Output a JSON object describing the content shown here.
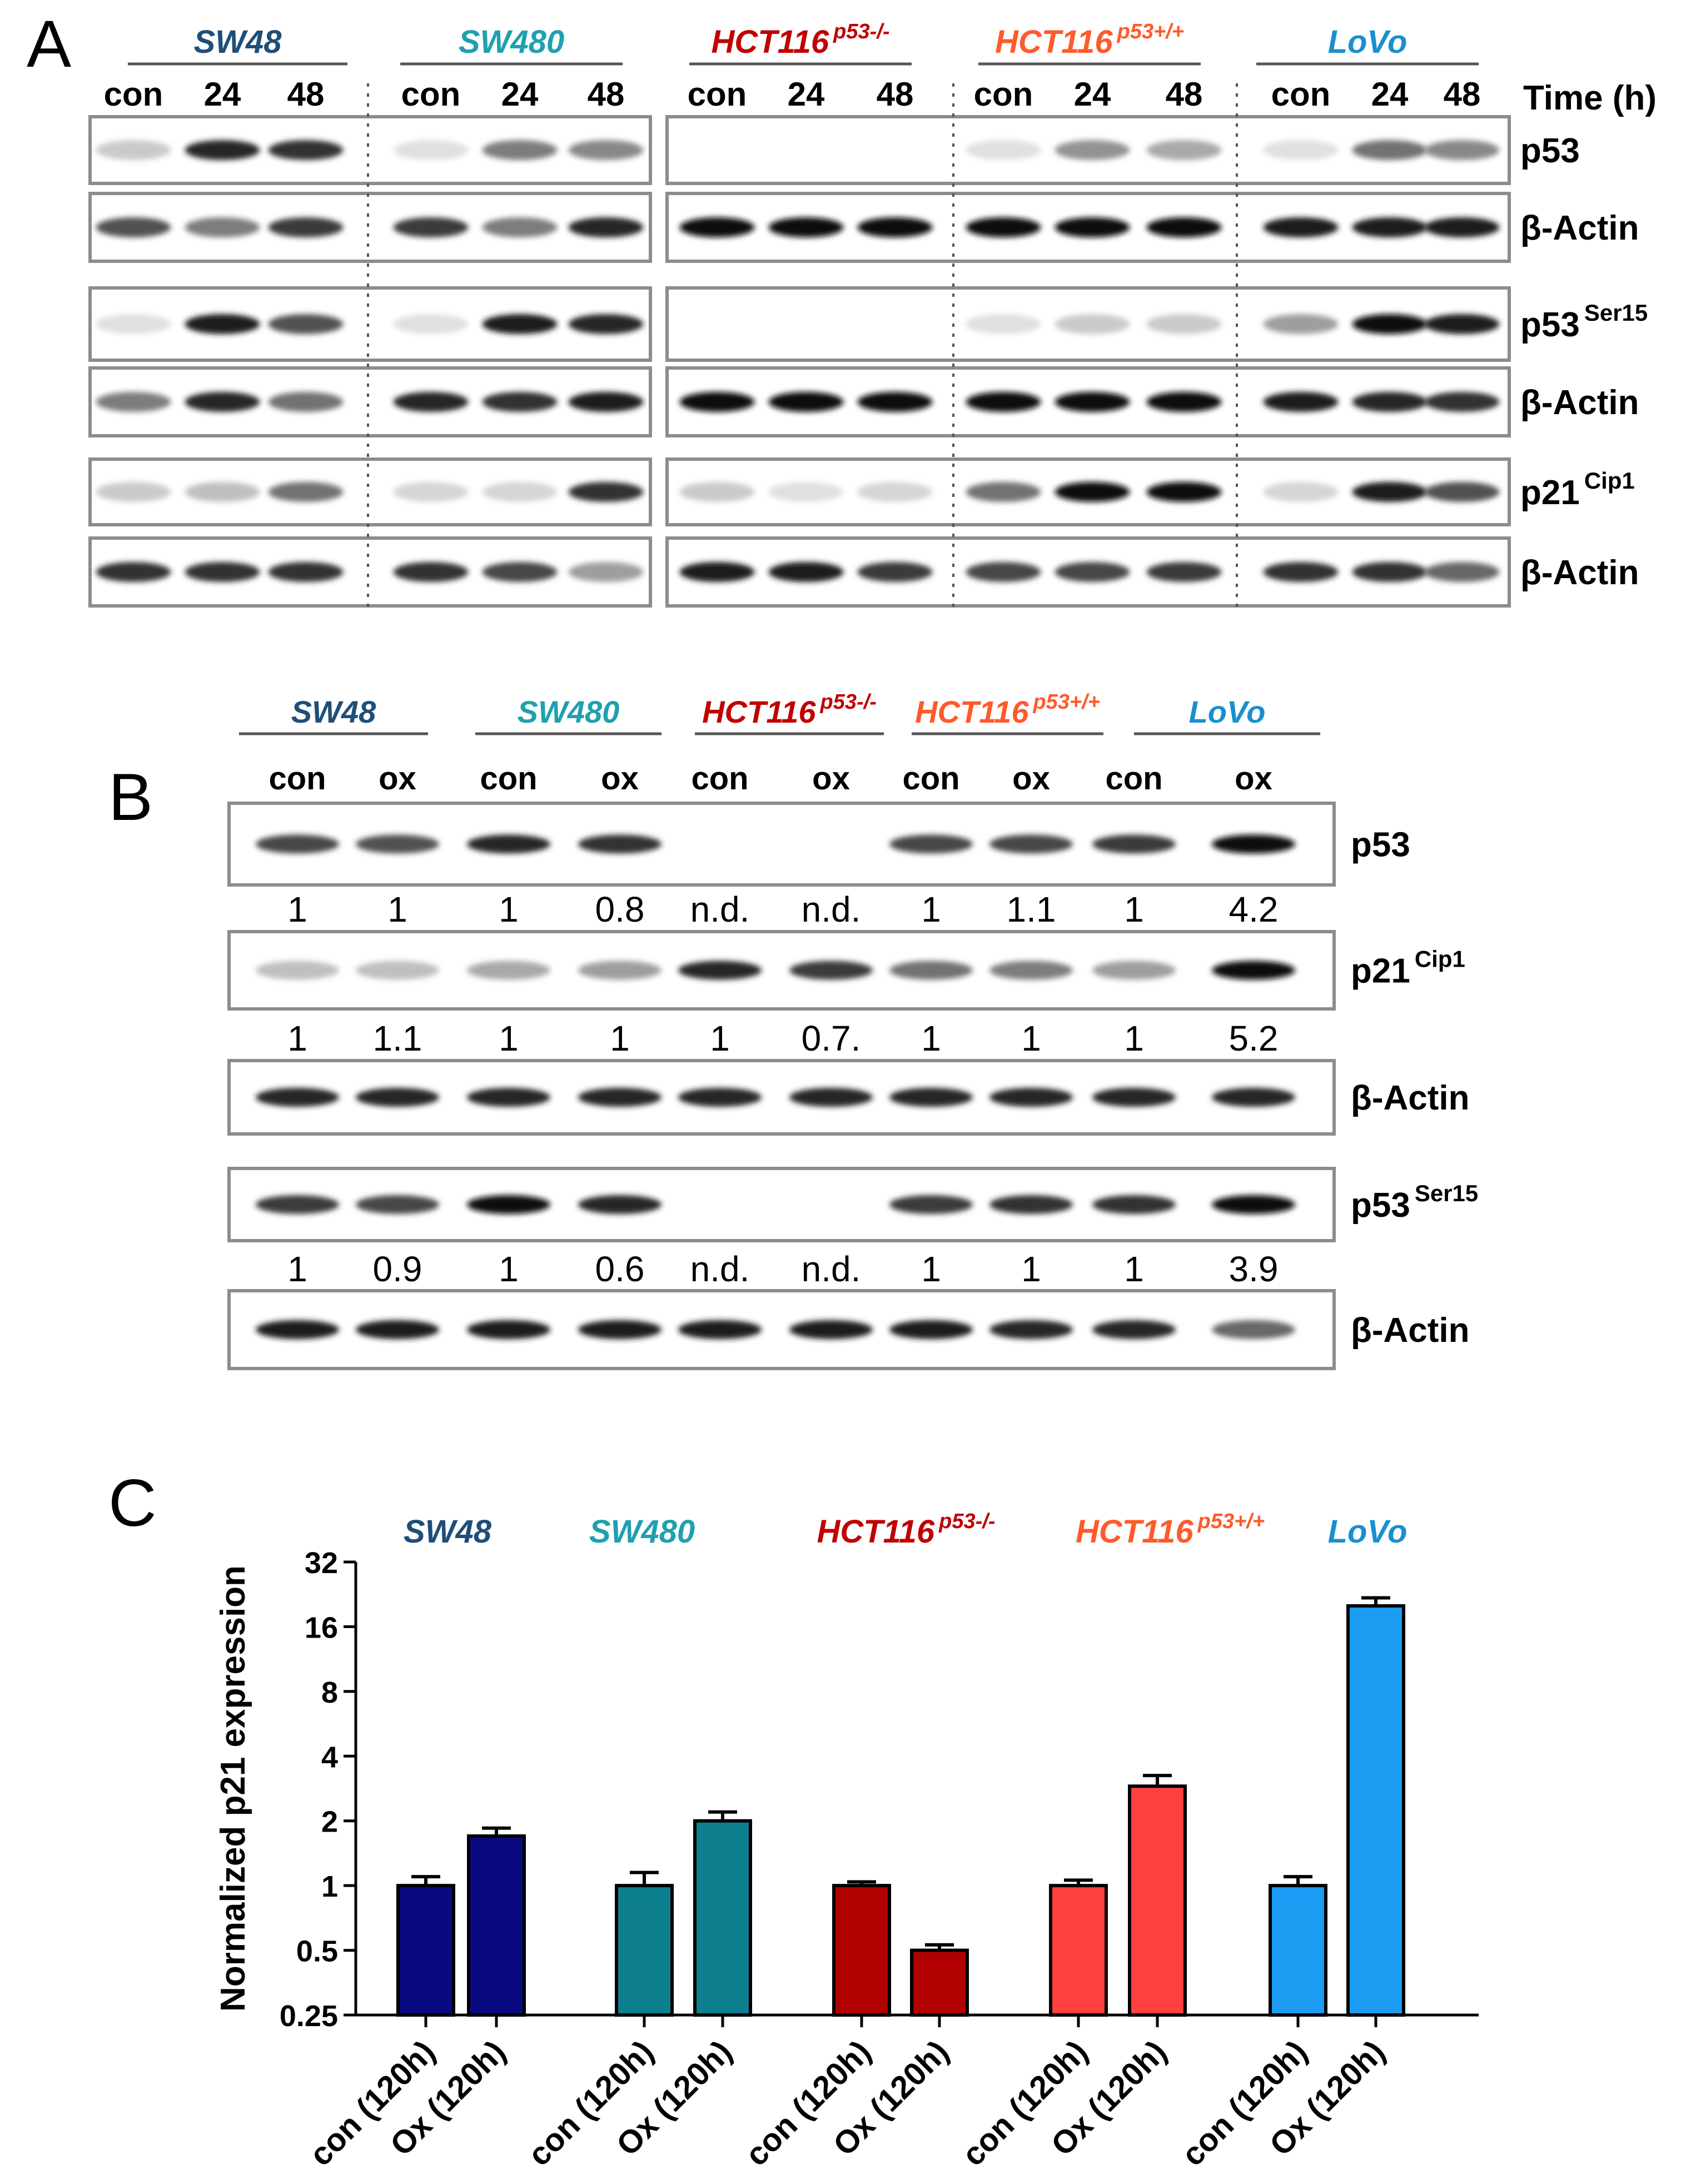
{
  "colors": {
    "sw48": "#1f4e79",
    "sw480": "#1fa0b0",
    "hct_ko": "#c00000",
    "hct_wt": "#ff5a2a",
    "lovo": "#1a8fd0",
    "bar_sw48": "#0a0a80",
    "bar_sw480": "#0d7f8f",
    "bar_hct_ko": "#b00000",
    "bar_hct_wt": "#ff4040",
    "bar_lovo": "#1c9cf2"
  },
  "panel_a": {
    "letter": "A",
    "cell_lines": [
      {
        "name": "SW48",
        "sup": ""
      },
      {
        "name": "SW480",
        "sup": ""
      },
      {
        "name": "HCT116",
        "sup": "p53-/-"
      },
      {
        "name": "HCT116",
        "sup": "p53+/+"
      },
      {
        "name": "LoVo",
        "sup": ""
      }
    ],
    "time_labels": [
      "con",
      "24",
      "48"
    ],
    "time_axis_label": "Time (h)",
    "rows": [
      {
        "label": "p53",
        "sup": ""
      },
      {
        "label": "β-Actin",
        "sup": ""
      },
      {
        "label": "p53",
        "sup": "Ser15"
      },
      {
        "label": "β-Actin",
        "sup": ""
      },
      {
        "label": "p21",
        "sup": "Cip1"
      },
      {
        "label": "β-Actin",
        "sup": ""
      }
    ]
  },
  "panel_b": {
    "letter": "B",
    "cell_lines": [
      {
        "name": "SW48",
        "sup": ""
      },
      {
        "name": "SW480",
        "sup": ""
      },
      {
        "name": "HCT116",
        "sup": "p53-/-"
      },
      {
        "name": "HCT116",
        "sup": "p53+/+"
      },
      {
        "name": "LoVo",
        "sup": ""
      }
    ],
    "lane_labels": [
      "con",
      "ox",
      "con",
      "ox",
      "con",
      "ox",
      "con",
      "ox",
      "con",
      "ox"
    ],
    "rows": [
      {
        "label": "p53",
        "sup": "",
        "quant": [
          "1",
          "1",
          "1",
          "0.8",
          "n.d.",
          "n.d.",
          "1",
          "1.1",
          "1",
          "4.2"
        ]
      },
      {
        "label": "p21",
        "sup": "Cip1",
        "quant": [
          "1",
          "1.1",
          "1",
          "1",
          "1",
          "0.7.",
          "1",
          "1",
          "1",
          "5.2"
        ]
      },
      {
        "label": "β-Actin",
        "sup": "",
        "quant": []
      },
      {
        "label": "p53",
        "sup": "Ser15",
        "quant": [
          "1",
          "0.9",
          "1",
          "0.6",
          "n.d.",
          "n.d.",
          "1",
          "1",
          "1",
          "3.9"
        ]
      },
      {
        "label": "β-Actin",
        "sup": "",
        "quant": []
      }
    ]
  },
  "chart_data": {
    "type": "bar",
    "panel_letter": "C",
    "ylabel": "Normalized p21 expression",
    "yscale": "log2",
    "ylim": [
      0.25,
      32
    ],
    "yticks": [
      "0.25",
      "0.5",
      "1",
      "2",
      "4",
      "8",
      "16",
      "32"
    ],
    "groups": [
      {
        "name": "SW48",
        "sup": ""
      },
      {
        "name": "SW480",
        "sup": ""
      },
      {
        "name": "HCT116",
        "sup": "p53-/-"
      },
      {
        "name": "HCT116",
        "sup": "p53+/+"
      },
      {
        "name": "LoVo",
        "sup": ""
      }
    ],
    "categories": [
      "con (120h)",
      "Ox (120h)",
      "con (120h)",
      "Ox (120h)",
      "con (120h)",
      "Ox (120h)",
      "con (120h)",
      "Ox (120h)",
      "con (120h)",
      "Ox (120h)"
    ],
    "values": [
      1.0,
      1.7,
      1.0,
      2.0,
      1.0,
      0.5,
      1.0,
      2.9,
      1.0,
      20.0
    ],
    "errors": [
      0.1,
      0.15,
      0.15,
      0.2,
      0.04,
      0.03,
      0.06,
      0.35,
      0.1,
      1.8
    ]
  }
}
